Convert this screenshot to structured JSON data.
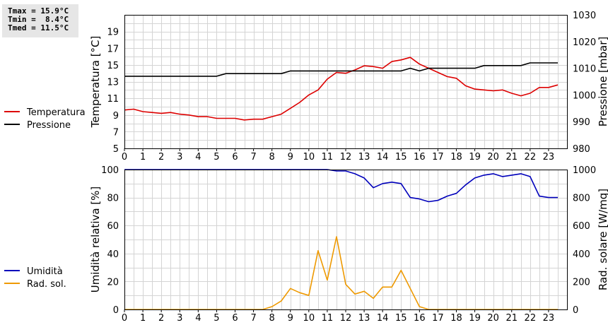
{
  "stats": {
    "tmax": "Tmax = 15.9°C",
    "tmin": "Tmin =  8.4°C",
    "tmed": "Tmed = 11.5°C"
  },
  "chart_data": [
    {
      "type": "line",
      "ylabel": "Temperatura [°C]",
      "y2label": "Pressione [mbar]",
      "xlim": [
        0,
        24
      ],
      "ylim": [
        5,
        21
      ],
      "y2lim": [
        980,
        1030
      ],
      "xticks": [
        "0",
        "1",
        "2",
        "3",
        "4",
        "5",
        "6",
        "7",
        "8",
        "9",
        "10",
        "11",
        "12",
        "13",
        "14",
        "15",
        "16",
        "17",
        "18",
        "19",
        "20",
        "21",
        "22",
        "23"
      ],
      "yticks": [
        "5",
        "7",
        "9",
        "11",
        "13",
        "15",
        "17",
        "19"
      ],
      "y2ticks": [
        "980",
        "990",
        "1000",
        "1010",
        "1020",
        "1030"
      ],
      "grid": true,
      "legend_position": "left",
      "series": [
        {
          "name": "Temperatura",
          "color": "#dd0000",
          "axis": "left",
          "x": [
            0,
            0.5,
            1,
            1.5,
            2,
            2.5,
            3,
            3.5,
            4,
            4.5,
            5,
            5.5,
            6,
            6.5,
            7,
            7.5,
            8,
            8.5,
            9,
            9.5,
            10,
            10.5,
            11,
            11.5,
            12,
            12.5,
            13,
            13.5,
            14,
            14.5,
            15,
            15.5,
            16,
            16.5,
            17,
            17.5,
            18,
            18.5,
            19,
            19.5,
            20,
            20.5,
            21,
            21.5,
            22,
            22.5,
            23,
            23.5
          ],
          "y": [
            9.6,
            9.7,
            9.4,
            9.3,
            9.2,
            9.3,
            9.1,
            9.0,
            8.8,
            8.8,
            8.6,
            8.6,
            8.6,
            8.4,
            8.5,
            8.5,
            8.8,
            9.1,
            9.8,
            10.5,
            11.4,
            12.0,
            13.3,
            14.1,
            14.0,
            14.4,
            14.9,
            14.8,
            14.6,
            15.4,
            15.6,
            15.9,
            15.1,
            14.6,
            14.1,
            13.6,
            13.4,
            12.5,
            12.1,
            12.0,
            11.9,
            12.0,
            11.6,
            11.3,
            11.6,
            12.3,
            12.3,
            12.6
          ]
        },
        {
          "name": "Pressione",
          "color": "#000000",
          "axis": "right",
          "x": [
            0,
            0.5,
            1,
            1.5,
            2,
            2.5,
            3,
            3.5,
            4,
            4.5,
            5,
            5.5,
            6,
            6.5,
            7,
            7.5,
            8,
            8.5,
            9,
            9.5,
            10,
            10.5,
            11,
            11.5,
            12,
            12.5,
            13,
            13.5,
            14,
            14.5,
            15,
            15.5,
            16,
            16.5,
            17,
            17.5,
            18,
            18.5,
            19,
            19.5,
            20,
            20.5,
            21,
            21.5,
            22,
            22.5,
            23,
            23.5
          ],
          "y": [
            1007,
            1007,
            1007,
            1007,
            1007,
            1007,
            1007,
            1007,
            1007,
            1007,
            1007,
            1008,
            1008,
            1008,
            1008,
            1008,
            1008,
            1008,
            1009,
            1009,
            1009,
            1009,
            1009,
            1009,
            1009,
            1009,
            1009,
            1009,
            1009,
            1009,
            1009,
            1010,
            1009,
            1010,
            1010,
            1010,
            1010,
            1010,
            1010,
            1011,
            1011,
            1011,
            1011,
            1011,
            1012,
            1012,
            1012,
            1012
          ]
        }
      ]
    },
    {
      "type": "line",
      "ylabel": "Umidità relativa [%]",
      "y2label": "Rad. solare [W/mq]",
      "xlim": [
        0,
        24
      ],
      "ylim": [
        0,
        100
      ],
      "y2lim": [
        0,
        1000
      ],
      "xticks": [
        "0",
        "1",
        "2",
        "3",
        "4",
        "5",
        "6",
        "7",
        "8",
        "9",
        "10",
        "11",
        "12",
        "13",
        "14",
        "15",
        "16",
        "17",
        "18",
        "19",
        "20",
        "21",
        "22",
        "23"
      ],
      "yticks": [
        "0",
        "20",
        "40",
        "60",
        "80",
        "100"
      ],
      "y2ticks": [
        "0",
        "200",
        "400",
        "600",
        "800",
        "1000"
      ],
      "grid": true,
      "legend_position": "left",
      "series": [
        {
          "name": "Umidità",
          "color": "#0000bb",
          "axis": "left",
          "x": [
            0,
            0.5,
            1,
            1.5,
            2,
            2.5,
            3,
            3.5,
            4,
            4.5,
            5,
            5.5,
            6,
            6.5,
            7,
            7.5,
            8,
            8.5,
            9,
            9.5,
            10,
            10.5,
            11,
            11.5,
            12,
            12.5,
            13,
            13.5,
            14,
            14.5,
            15,
            15.5,
            16,
            16.5,
            17,
            17.5,
            18,
            18.5,
            19,
            19.5,
            20,
            20.5,
            21,
            21.5,
            22,
            22.5,
            23,
            23.5
          ],
          "y": [
            100,
            100,
            100,
            100,
            100,
            100,
            100,
            100,
            100,
            100,
            100,
            100,
            100,
            100,
            100,
            100,
            100,
            100,
            100,
            100,
            100,
            100,
            100,
            99,
            99,
            97,
            94,
            87,
            90,
            91,
            90,
            80,
            79,
            77,
            78,
            81,
            83,
            89,
            94,
            96,
            97,
            95,
            96,
            97,
            95,
            81,
            80,
            80
          ]
        },
        {
          "name": "Rad. sol.",
          "color": "#ee9900",
          "axis": "right",
          "x": [
            0,
            0.5,
            1,
            1.5,
            2,
            2.5,
            3,
            3.5,
            4,
            4.5,
            5,
            5.5,
            6,
            6.5,
            7,
            7.5,
            8,
            8.5,
            9,
            9.5,
            10,
            10.5,
            11,
            11.5,
            12,
            12.5,
            13,
            13.5,
            14,
            14.5,
            15,
            15.5,
            16,
            16.5,
            17,
            17.5,
            18,
            18.5,
            19,
            19.5,
            20,
            20.5,
            21,
            21.5,
            22,
            22.5,
            23,
            23.5
          ],
          "y": [
            0,
            0,
            0,
            0,
            0,
            0,
            0,
            0,
            0,
            0,
            0,
            0,
            0,
            0,
            0,
            0,
            20,
            60,
            150,
            120,
            100,
            420,
            210,
            520,
            180,
            110,
            130,
            80,
            160,
            160,
            280,
            150,
            20,
            0,
            0,
            0,
            0,
            0,
            0,
            0,
            0,
            0,
            0,
            0,
            0,
            0,
            0,
            0
          ]
        }
      ]
    }
  ]
}
